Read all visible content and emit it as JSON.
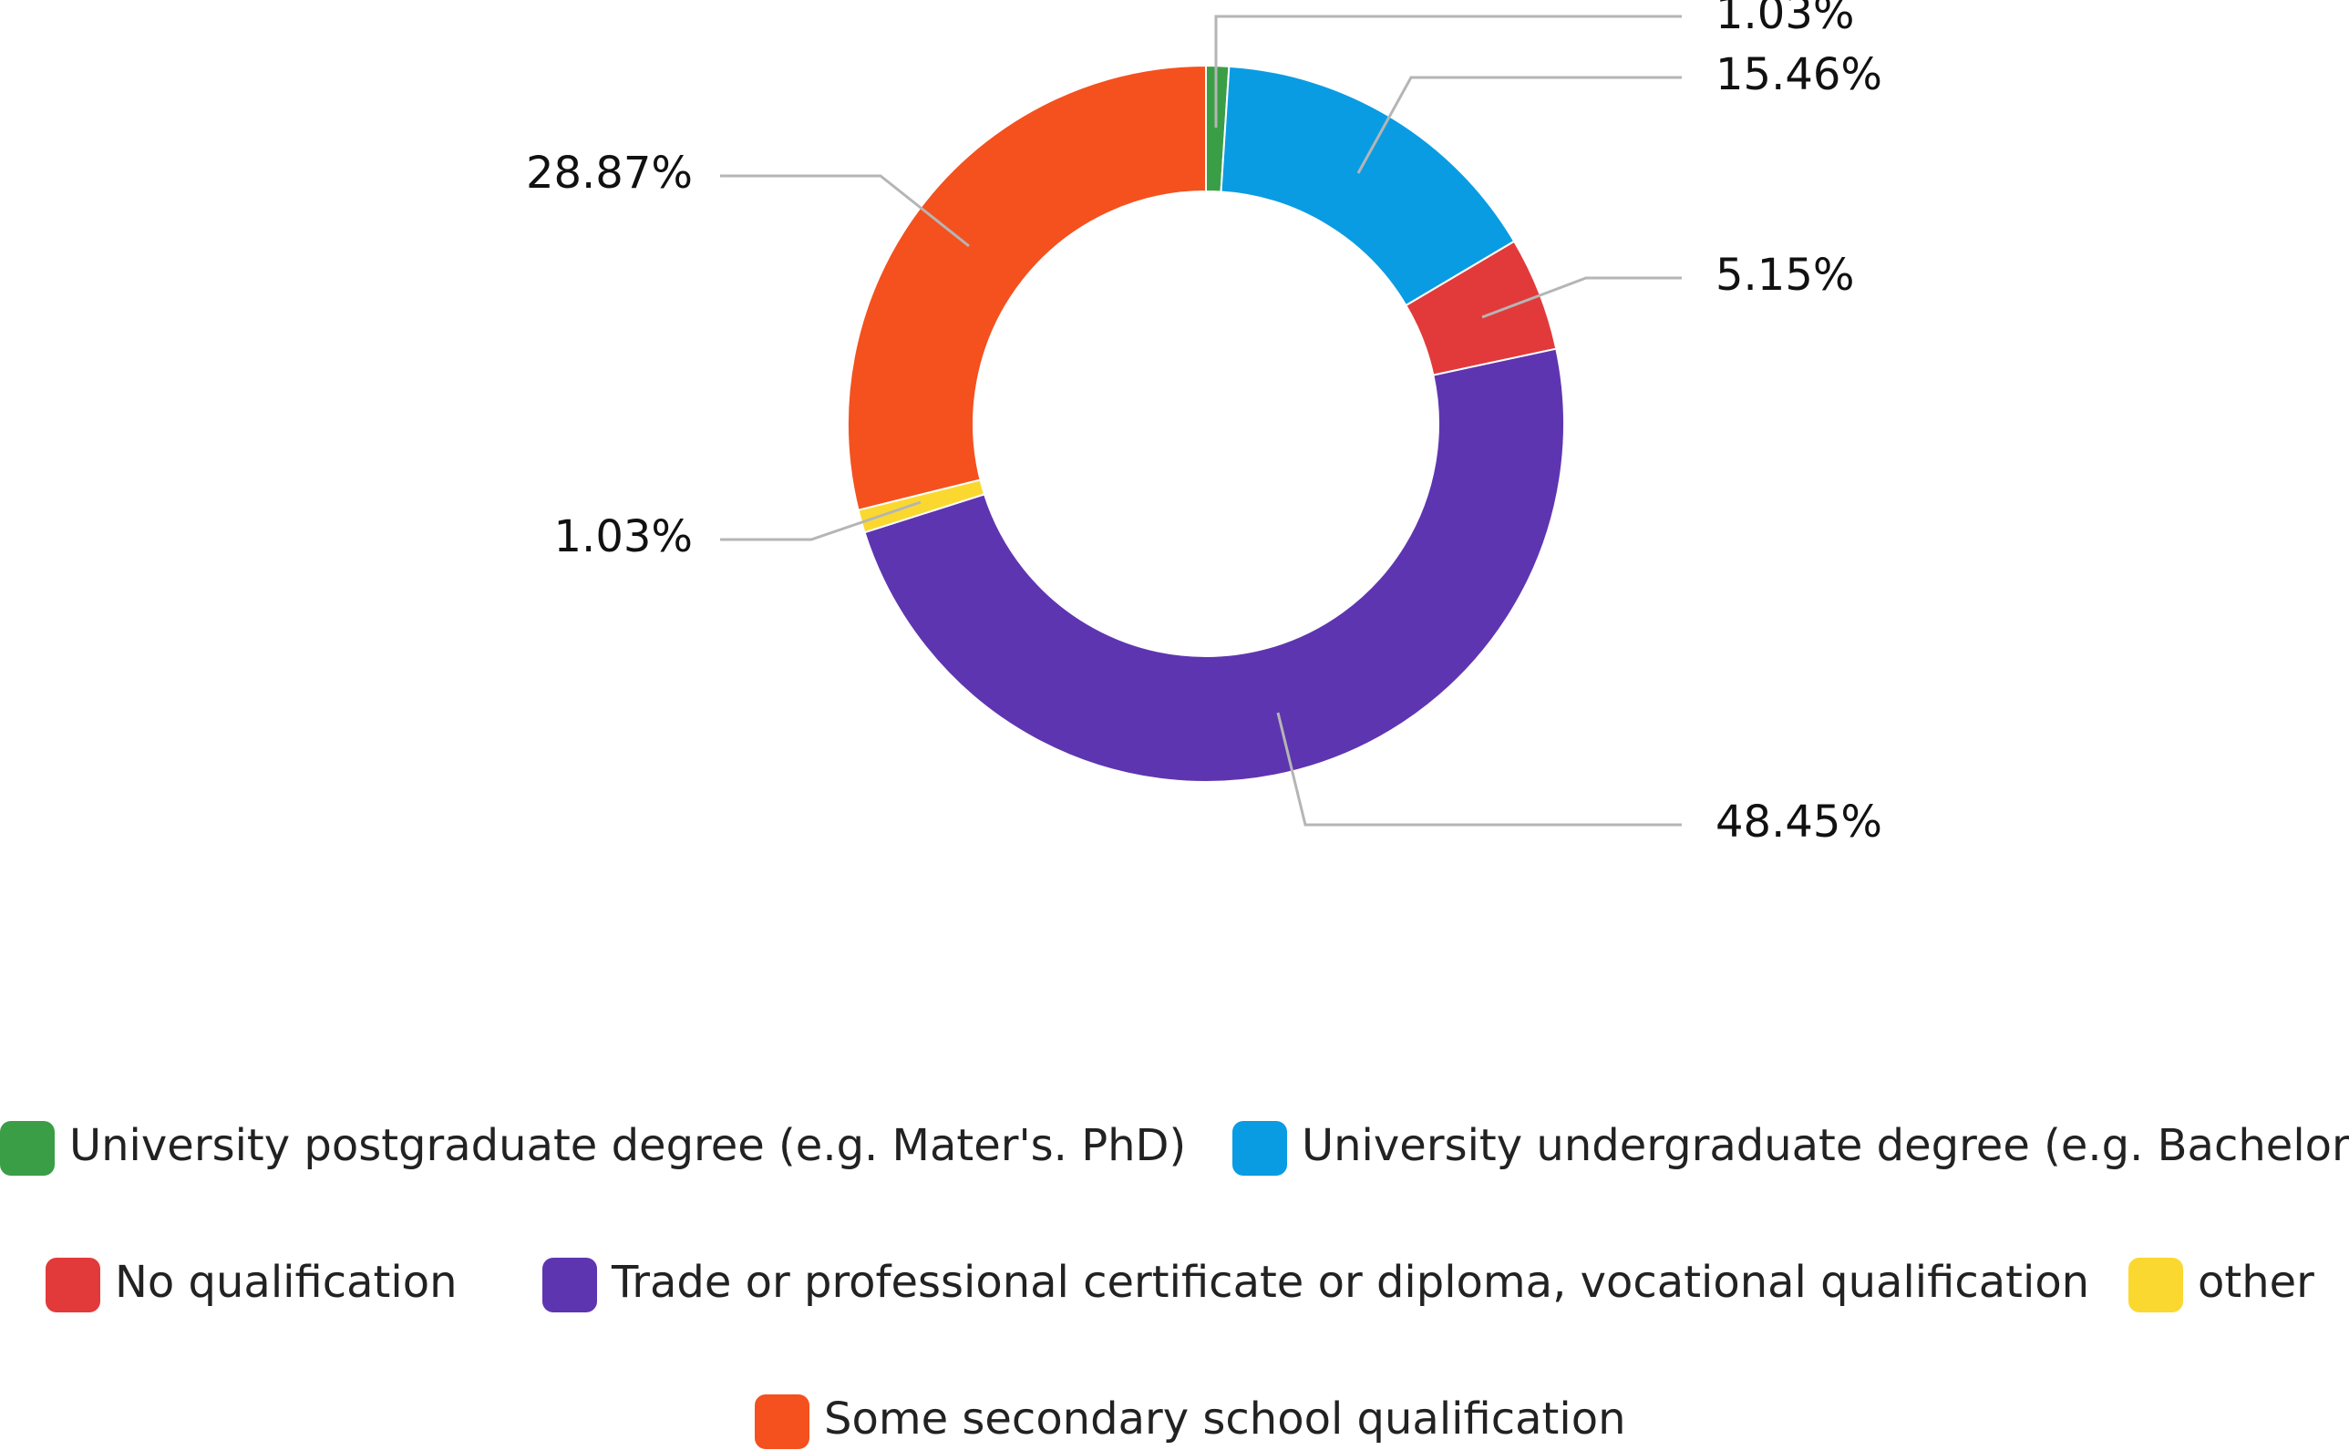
{
  "chart_data": {
    "type": "pie",
    "donut": true,
    "title": "",
    "legend_position": "bottom",
    "slices": [
      {
        "name": "University postgraduate degree (e.g. Mater's. PhD)",
        "value": 1.03,
        "label": "1.03%",
        "color": "#3a9e46"
      },
      {
        "name": "University undergraduate degree (e.g. Bachelor's)",
        "value": 15.46,
        "label": "15.46%",
        "color": "#0a9ce2"
      },
      {
        "name": "No qualification",
        "value": 5.15,
        "label": "5.15%",
        "color": "#e23a3a"
      },
      {
        "name": "Trade or professional certificate or diploma, vocational qualification",
        "value": 48.45,
        "label": "48.45%",
        "color": "#5e35b0"
      },
      {
        "name": "other",
        "value": 1.03,
        "label": "1.03%",
        "color": "#fbd830"
      },
      {
        "name": "Some secondary school qualification",
        "value": 28.87,
        "label": "28.87%",
        "color": "#f4511e"
      }
    ]
  }
}
